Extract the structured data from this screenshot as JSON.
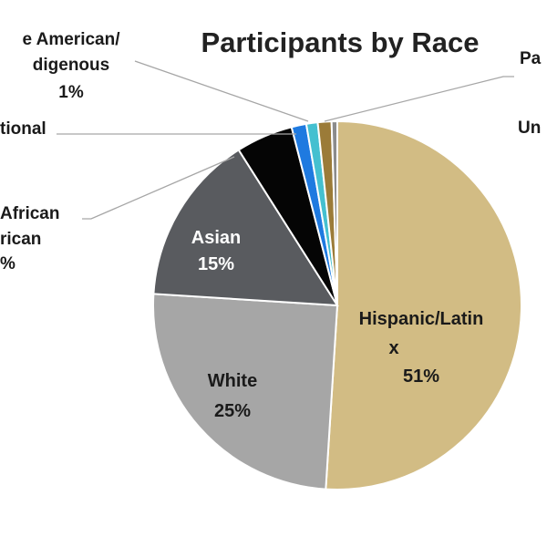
{
  "chart_data": {
    "type": "pie",
    "title": "Participants by Race",
    "start_angle_deg": 0,
    "direction": "clockwise",
    "slices": [
      {
        "label_lines": [
          "Hispanic/Latin",
          "x",
          "51%"
        ],
        "value": 51,
        "color": "#d2bc84",
        "label_style": "inside-dark"
      },
      {
        "label_lines": [
          "White",
          "25%"
        ],
        "value": 25,
        "color": "#a6a6a6",
        "label_style": "inside-dark"
      },
      {
        "label_lines": [
          "Asian",
          "15%"
        ],
        "value": 15,
        "color": "#595b5f",
        "label_style": "inside-light"
      },
      {
        "label_lines": [
          "African",
          "rican",
          "%"
        ],
        "value": 5,
        "color": "#050505",
        "label_style": "outside"
      },
      {
        "label_lines": [
          "tional",
          ""
        ],
        "value": 1.3,
        "color": "#1f7ae0",
        "label_style": "outside"
      },
      {
        "label_lines": [
          "e American/",
          "digenous",
          "1%"
        ],
        "value": 1,
        "color": "#45c0d0",
        "label_style": "outside"
      },
      {
        "label_lines": [
          "Pa"
        ],
        "value": 1.2,
        "color": "#9b7b38",
        "label_style": "outside"
      },
      {
        "label_lines": [
          "Un"
        ],
        "value": 0.5,
        "color": "#8c8c8c",
        "label_style": "outside"
      }
    ]
  }
}
